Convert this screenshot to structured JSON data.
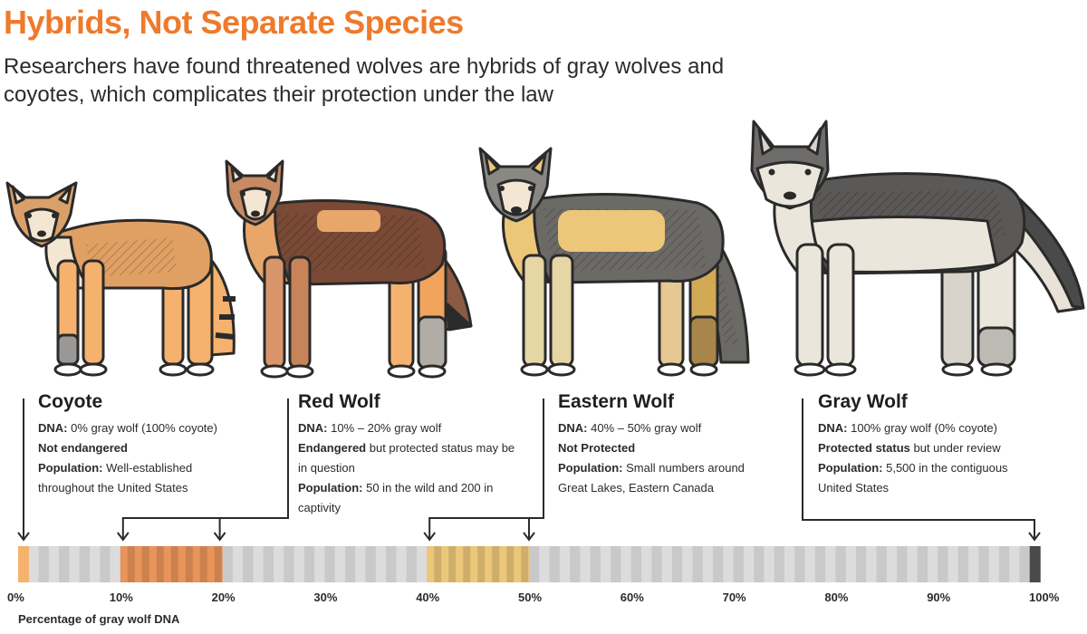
{
  "title": "Hybrids, Not Separate Species",
  "subtitle": "Researchers have found threatened wolves are hybrids of gray wolves and coyotes, which complicates their protection under the law",
  "species": [
    {
      "name": "Coyote",
      "dna_label": "DNA:",
      "dna_text": " 0% gray wolf (100% coyote)",
      "status_label": "Not endangered",
      "status_text": "",
      "pop_label": "Population:",
      "pop_text": " Well-established throughout the United States",
      "range_min": 0,
      "range_max": 1,
      "color": "#f4b26e"
    },
    {
      "name": "Red Wolf",
      "dna_label": "DNA:",
      "dna_text": " 10% – 20% gray wolf",
      "status_label": "Endangered",
      "status_text": " but protected status may be in question",
      "pop_label": "Population:",
      "pop_text": " 50 in the wild and 200 in captivity",
      "range_min": 10,
      "range_max": 20,
      "color": "#e8945a"
    },
    {
      "name": "Eastern Wolf",
      "dna_label": "DNA:",
      "dna_text": " 40% – 50% gray wolf",
      "status_label": "Not Protected",
      "status_text": "",
      "pop_label": "Population:",
      "pop_text": " Small numbers around Great Lakes, Eastern Canada",
      "range_min": 40,
      "range_max": 50,
      "color": "#ecc77a"
    },
    {
      "name": "Gray Wolf",
      "dna_label": "DNA:",
      "dna_text": " 100% gray wolf (0% coyote)",
      "status_label": "Protected status",
      "status_text": " but under review",
      "pop_label": "Population:",
      "pop_text": " 5,500 in the contiguous United States",
      "range_min": 99,
      "range_max": 100,
      "color": "#4a4a4a"
    }
  ],
  "axis": {
    "label": "Percentage of gray wolf DNA",
    "ticks": [
      "0%",
      "10%",
      "20%",
      "30%",
      "40%",
      "50%",
      "60%",
      "70%",
      "80%",
      "90%",
      "100%"
    ]
  },
  "colors": {
    "accent": "#ee7a2c",
    "bar_light": "#dcdcdc",
    "bar_stripe": "#c9c9c9",
    "outline": "#2a2a2a"
  },
  "icons": [
    "coyote-illustration",
    "red-wolf-illustration",
    "eastern-wolf-illustration",
    "gray-wolf-illustration",
    "down-arrow-icon"
  ]
}
